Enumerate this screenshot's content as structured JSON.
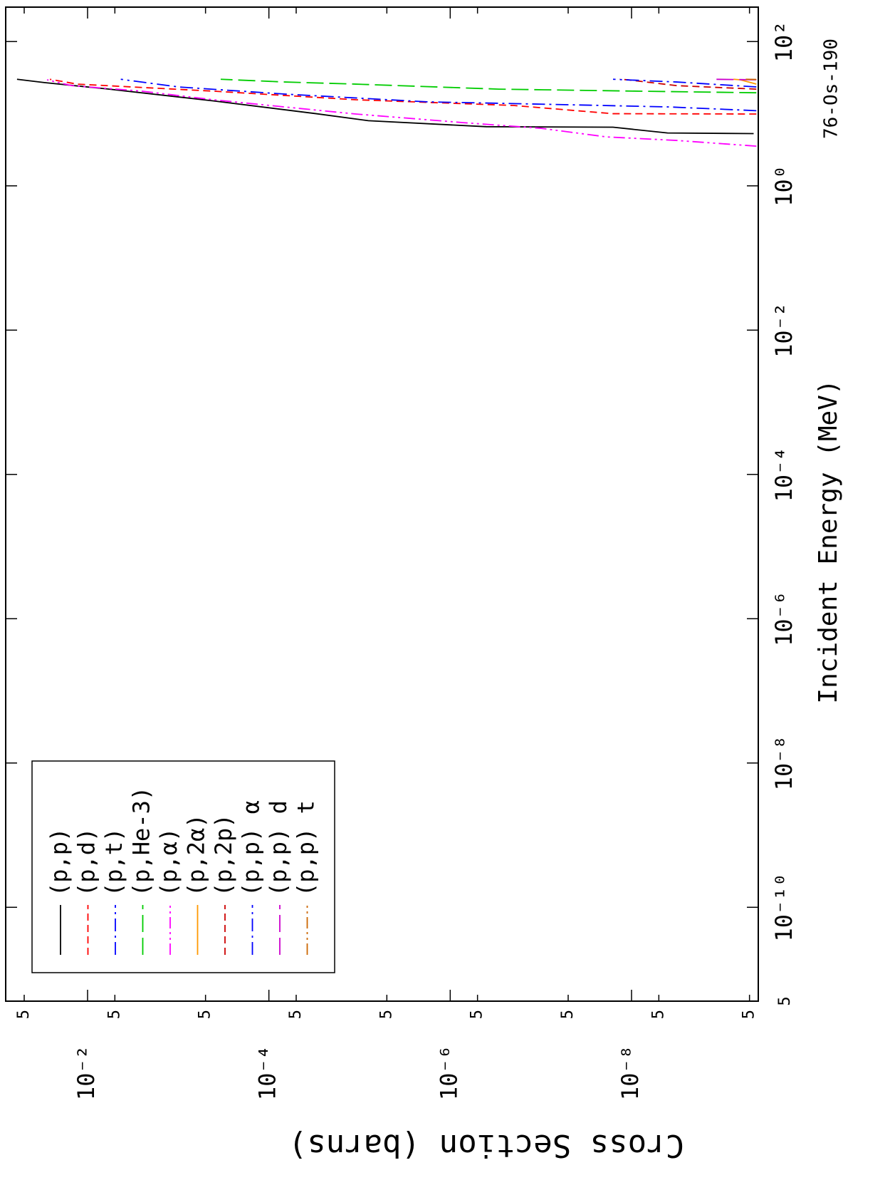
{
  "chart_data": {
    "type": "line",
    "title": "76-Os-190",
    "xlabel": "Incident Energy (MeV)",
    "ylabel": "Cross Section (barns)",
    "xscale": "log",
    "yscale": "log",
    "xlim": [
      5e-12,
      300
    ],
    "ylim": [
      4e-10,
      0.08
    ],
    "xticks": [
      {
        "value": 5e-12,
        "label": "5"
      },
      {
        "value": 1e-10,
        "label": "10⁻¹⁰"
      },
      {
        "value": 1e-08,
        "label": "10⁻⁸"
      },
      {
        "value": 1e-06,
        "label": "10⁻⁶"
      },
      {
        "value": 0.0001,
        "label": "10⁻⁴"
      },
      {
        "value": 0.01,
        "label": "10⁻²"
      },
      {
        "value": 1,
        "label": "10⁰"
      },
      {
        "value": 100,
        "label": "10²"
      }
    ],
    "yticks": [
      {
        "value": 0.05,
        "label": "5"
      },
      {
        "value": 0.01,
        "label": "10⁻²"
      },
      {
        "value": 0.005,
        "label": "5"
      },
      {
        "value": 0.0005,
        "label": "5"
      },
      {
        "value": 0.0001,
        "label": "10⁻⁴"
      },
      {
        "value": 5e-05,
        "label": "5"
      },
      {
        "value": 5e-06,
        "label": "5"
      },
      {
        "value": 1e-06,
        "label": "10⁻⁶"
      },
      {
        "value": 5e-07,
        "label": "5"
      },
      {
        "value": 5e-08,
        "label": "5"
      },
      {
        "value": 1e-08,
        "label": "10⁻⁸"
      },
      {
        "value": 5e-09,
        "label": "5"
      },
      {
        "value": 5e-10,
        "label": "5"
      }
    ],
    "legend": "upper left",
    "series": [
      {
        "name": "(p,p)",
        "color": "#000000",
        "dash": "solid",
        "x": [
          5.3,
          5.4,
          6.5,
          6.6,
          8,
          10,
          15,
          22,
          27,
          30
        ],
        "values": [
          4.5e-10,
          4e-09,
          1.6e-08,
          4e-07,
          8e-06,
          3e-05,
          0.0004,
          0.006,
          0.03,
          0.06
        ]
      },
      {
        "name": "(p,d)",
        "color": "#ff0000",
        "dash": "dash",
        "x": [
          9.9,
          10,
          13,
          15.6,
          20.5,
          25.7,
          30
        ],
        "values": [
          4.2e-10,
          1.6e-08,
          2e-07,
          1.1e-05,
          0.0004,
          0.013,
          0.026
        ]
      },
      {
        "name": "(p,t)",
        "color": "#0000ff",
        "dash": "dashdot",
        "x": [
          11,
          12.4,
          13.3,
          14.6,
          18.7,
          23.5,
          30
        ],
        "values": [
          4.2e-10,
          3.8e-09,
          4.8e-08,
          1.8e-06,
          6.7e-05,
          0.001,
          0.0043
        ]
      },
      {
        "name": "(p,He-3)",
        "color": "#00cc00",
        "dash": "longdash",
        "x": [
          19.5,
          20.5,
          21.9,
          25.7,
          27.5,
          30
        ],
        "values": [
          4.2e-10,
          7.9e-09,
          2.9e-07,
          1.1e-05,
          6.7e-05,
          0.00034
        ]
      },
      {
        "name": "(p,α)",
        "color": "#ff00ff",
        "dash": "dashdotdot",
        "x": [
          3.55,
          4.26,
          4.77,
          6.27,
          7.52,
          9.9,
          12.4,
          15.6,
          20.5,
          24.5,
          29.5
        ],
        "values": [
          4.2e-10,
          3.2e-09,
          1.9e-08,
          9.9e-08,
          7.2e-07,
          1.1e-05,
          6.7e-05,
          0.00041,
          0.0025,
          0.015,
          0.028
        ]
      },
      {
        "name": "(p,2α)",
        "color": "#ff9900",
        "dash": "solid",
        "x": [
          25.7,
          29.5,
          30
        ],
        "values": [
          4.2e-10,
          6.3e-10,
          7.5e-10
        ]
      },
      {
        "name": "(p,2p)",
        "color": "#cc0000",
        "dash": "dash",
        "x": [
          21.9,
          24.5,
          29.5,
          30
        ],
        "values": [
          4.2e-10,
          3.2e-09,
          1.1e-08,
          1.35e-08
        ]
      },
      {
        "name": "(p,p) α",
        "color": "#0000ff",
        "dash": "dashdot",
        "x": [
          23.5,
          27.5,
          30
        ],
        "values": [
          4.2e-10,
          3.2e-09,
          1.6e-08
        ]
      },
      {
        "name": "(p,p) d",
        "color": "#cc00cc",
        "dash": "longdash",
        "x": [
          29.5,
          30
        ],
        "values": [
          4.2e-10,
          1.3e-09
        ]
      },
      {
        "name": "(p,p) t",
        "color": "#cc6600",
        "dash": "dashdotdot",
        "x": [
          29.8,
          30
        ],
        "values": [
          4.2e-10,
          5.5e-10
        ]
      }
    ]
  }
}
